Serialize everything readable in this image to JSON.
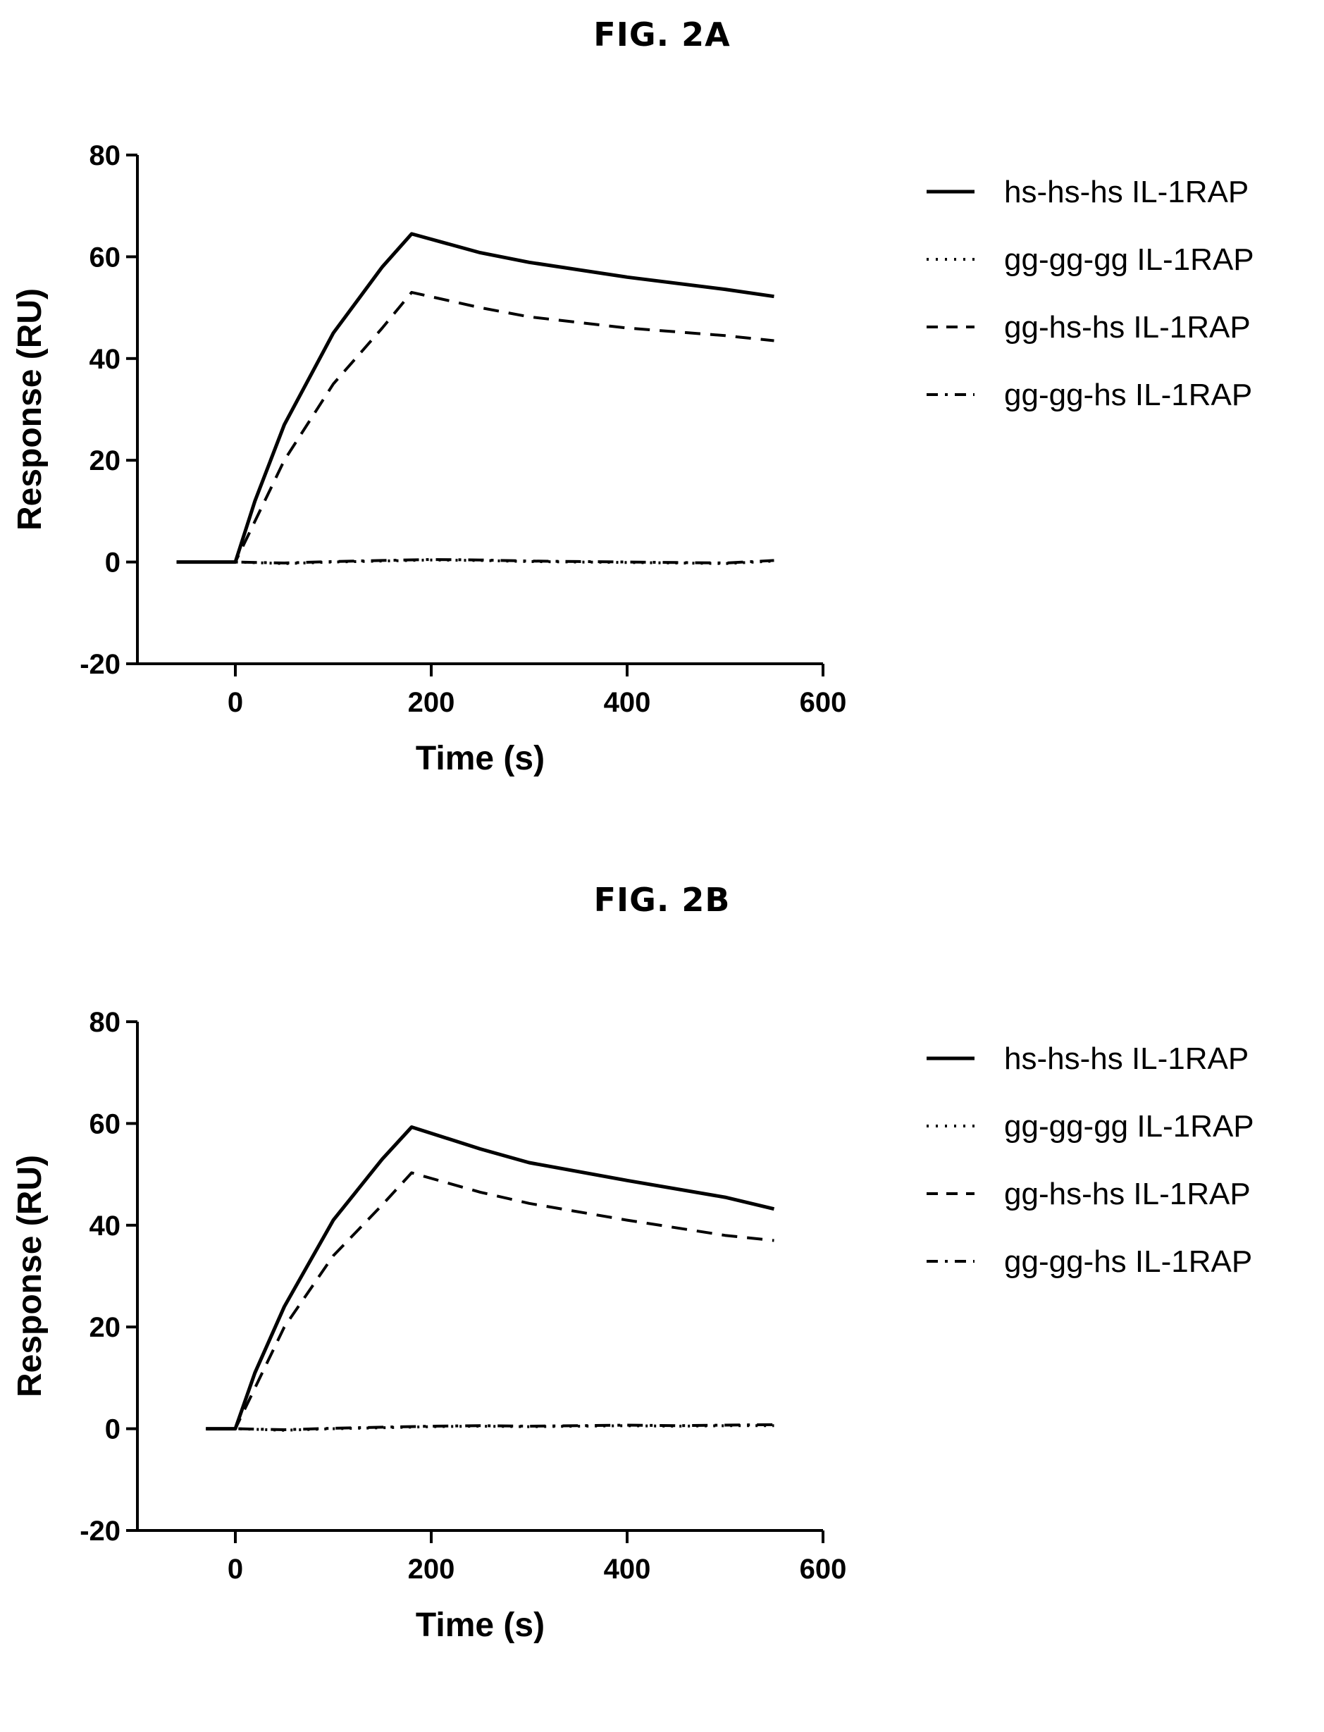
{
  "figures": {
    "a": {
      "title": "FIG. 2A"
    },
    "b": {
      "title": "FIG. 2B"
    }
  },
  "chart_data": [
    {
      "type": "line",
      "title": "FIG. 2A",
      "xlabel": "Time (s)",
      "ylabel": "Response (RU)",
      "xlim": [
        -100,
        600
      ],
      "ylim": [
        -20,
        80
      ],
      "xticks": [
        "0",
        "200",
        "400",
        "600"
      ],
      "yticks": [
        "-20",
        "0",
        "20",
        "40",
        "60",
        "80"
      ],
      "grid": false,
      "legend": "right",
      "series": [
        {
          "name": "hs-hs-hs IL-1RAP",
          "style": "solid",
          "x": [
            -60,
            0,
            20,
            50,
            100,
            150,
            180,
            250,
            300,
            400,
            500,
            550
          ],
          "y": [
            0,
            0,
            12,
            27,
            45,
            58,
            64.5,
            60.8,
            58.9,
            56,
            53.6,
            52.2
          ]
        },
        {
          "name": "gg-gg-gg IL-1RAP",
          "style": "dotted",
          "x": [
            -60,
            0,
            50,
            100,
            150,
            200,
            250,
            300,
            350,
            400,
            450,
            500,
            550
          ],
          "y": [
            0,
            0,
            -0.3,
            0,
            0.2,
            0.4,
            0.3,
            0.1,
            0,
            -0.1,
            -0.2,
            -0.3,
            0.2
          ]
        },
        {
          "name": "gg-hs-hs IL-1RAP",
          "style": "dashed",
          "x": [
            -60,
            0,
            20,
            50,
            100,
            150,
            180,
            250,
            300,
            400,
            500,
            550
          ],
          "y": [
            0,
            0,
            8,
            20,
            35,
            46,
            53,
            50,
            48.2,
            46,
            44.5,
            43.5
          ]
        },
        {
          "name": "gg-gg-hs IL-1RAP",
          "style": "dashdot",
          "x": [
            -60,
            0,
            50,
            100,
            150,
            200,
            250,
            300,
            350,
            400,
            450,
            500,
            550
          ],
          "y": [
            0,
            0,
            -0.2,
            0.1,
            0.3,
            0.5,
            0.4,
            0.2,
            0.1,
            0,
            -0.1,
            -0.2,
            0.3
          ]
        }
      ]
    },
    {
      "type": "line",
      "title": "FIG. 2B",
      "xlabel": "Time (s)",
      "ylabel": "Response (RU)",
      "xlim": [
        -100,
        600
      ],
      "ylim": [
        -20,
        80
      ],
      "xticks": [
        "0",
        "200",
        "400",
        "600"
      ],
      "yticks": [
        "-20",
        "0",
        "20",
        "40",
        "60",
        "80"
      ],
      "grid": false,
      "legend": "right",
      "series": [
        {
          "name": "hs-hs-hs IL-1RAP",
          "style": "solid",
          "x": [
            -30,
            0,
            20,
            50,
            100,
            150,
            180,
            250,
            300,
            400,
            500,
            550
          ],
          "y": [
            0,
            0,
            11,
            24,
            41,
            53,
            59.3,
            55,
            52.3,
            48.8,
            45.5,
            43.2
          ]
        },
        {
          "name": "gg-gg-gg IL-1RAP",
          "style": "dotted",
          "x": [
            -30,
            0,
            50,
            100,
            150,
            200,
            250,
            300,
            350,
            400,
            450,
            500,
            550
          ],
          "y": [
            0,
            0,
            -0.3,
            0,
            0.2,
            0.4,
            0.5,
            0.4,
            0.5,
            0.6,
            0.5,
            0.6,
            0.6
          ]
        },
        {
          "name": "gg-hs-hs IL-1RAP",
          "style": "dashed",
          "x": [
            -30,
            0,
            20,
            50,
            100,
            150,
            180,
            250,
            300,
            400,
            500,
            550
          ],
          "y": [
            0,
            0,
            8,
            20,
            34,
            44,
            50.3,
            46.5,
            44.3,
            41,
            38,
            37
          ]
        },
        {
          "name": "gg-gg-hs IL-1RAP",
          "style": "dashdot",
          "x": [
            -30,
            0,
            50,
            100,
            150,
            200,
            250,
            300,
            350,
            400,
            450,
            500,
            550
          ],
          "y": [
            0,
            0,
            -0.2,
            0.1,
            0.3,
            0.5,
            0.6,
            0.5,
            0.6,
            0.7,
            0.6,
            0.7,
            0.8
          ]
        }
      ]
    }
  ]
}
